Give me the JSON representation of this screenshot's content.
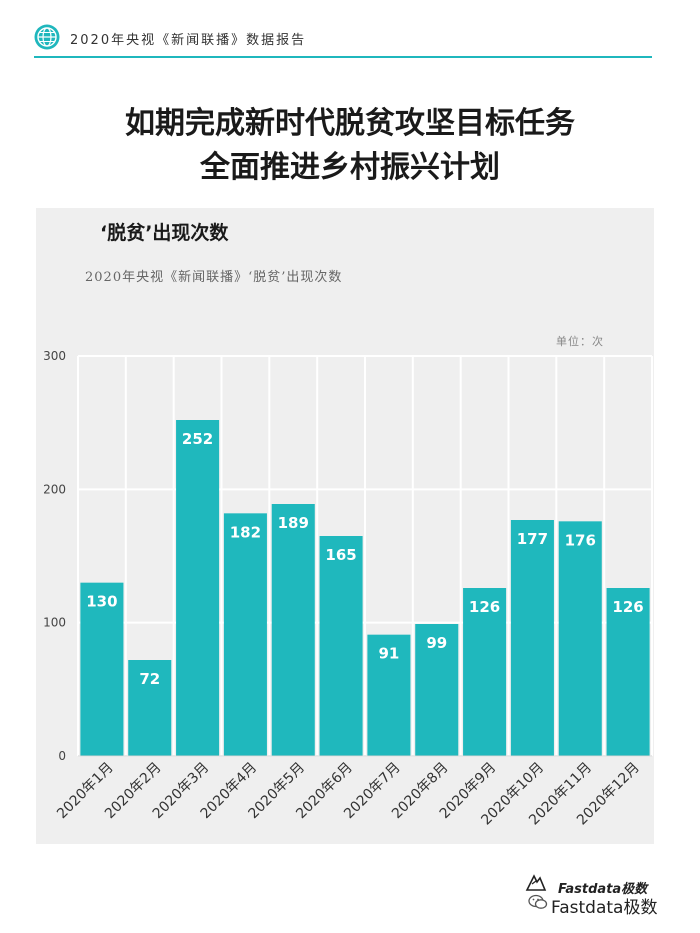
{
  "header": {
    "text": "2020年央视《新闻联播》数据报告",
    "icon": "globe-icon"
  },
  "title_lines": [
    "如期完成新时代脱贫攻坚目标任务",
    "全面推进乡村振兴计划"
  ],
  "panel": {
    "title": "‘脱贫’出现次数",
    "subtitle": "2020年央视《新闻联播》‘脱贫’出现次数",
    "unit": "单位：次"
  },
  "chart_data": {
    "type": "bar",
    "categories": [
      "2020年1月",
      "2020年2月",
      "2020年3月",
      "2020年4月",
      "2020年5月",
      "2020年6月",
      "2020年7月",
      "2020年8月",
      "2020年9月",
      "2020年10月",
      "2020年11月",
      "2020年12月"
    ],
    "values": [
      130,
      72,
      252,
      182,
      189,
      165,
      91,
      99,
      126,
      177,
      176,
      126
    ],
    "ylim": [
      0,
      300
    ],
    "yticks": [
      0,
      100,
      200,
      300
    ],
    "grid": true,
    "bar_color": "#1fb8bd",
    "data_labels": true
  },
  "footer": {
    "brand": "Fastdata极数",
    "wechat": "Fastdata极数"
  }
}
